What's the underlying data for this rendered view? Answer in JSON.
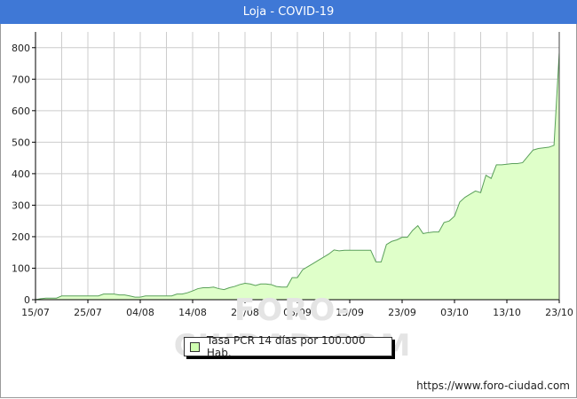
{
  "header": {
    "title": "Loja - COVID-19"
  },
  "footer": {
    "url": "https://www.foro-ciudad.com"
  },
  "watermark": {
    "text": "FORO-CIUDAD.COM"
  },
  "colors": {
    "title_bg": "#3f78d6",
    "area_fill": "#dfffc9",
    "area_line": "#5aa05a",
    "grid": "#cccccc"
  },
  "chart_data": {
    "type": "area",
    "title": "Loja - COVID-19",
    "xlabel": "",
    "ylabel": "",
    "ylim": [
      0,
      850
    ],
    "yticks": [
      0,
      100,
      200,
      300,
      400,
      500,
      600,
      700,
      800
    ],
    "xtick_labels": [
      "15/07",
      "25/07",
      "04/08",
      "14/08",
      "24/08",
      "03/09",
      "13/09",
      "23/09",
      "03/10",
      "13/10",
      "23/10"
    ],
    "grid": true,
    "legend_position": "bottom-center",
    "series": [
      {
        "name": "Tasa PCR 14 días por 100.000 Hab.",
        "x": [
          "15/07",
          "16/07",
          "17/07",
          "18/07",
          "19/07",
          "20/07",
          "21/07",
          "22/07",
          "23/07",
          "24/07",
          "25/07",
          "26/07",
          "27/07",
          "28/07",
          "29/07",
          "30/07",
          "31/07",
          "01/08",
          "02/08",
          "03/08",
          "04/08",
          "05/08",
          "06/08",
          "07/08",
          "08/08",
          "09/08",
          "10/08",
          "11/08",
          "12/08",
          "13/08",
          "14/08",
          "15/08",
          "16/08",
          "17/08",
          "18/08",
          "19/08",
          "20/08",
          "21/08",
          "22/08",
          "23/08",
          "24/08",
          "25/08",
          "26/08",
          "27/08",
          "28/08",
          "29/08",
          "30/08",
          "31/08",
          "01/09",
          "02/09",
          "03/09",
          "04/09",
          "05/09",
          "06/09",
          "07/09",
          "08/09",
          "09/09",
          "10/09",
          "11/09",
          "12/09",
          "13/09",
          "14/09",
          "15/09",
          "16/09",
          "17/09",
          "18/09",
          "19/09",
          "20/09",
          "21/09",
          "22/09",
          "23/09",
          "24/09",
          "25/09",
          "26/09",
          "27/09",
          "28/09",
          "29/09",
          "30/09",
          "01/10",
          "02/10",
          "03/10",
          "04/10",
          "05/10",
          "06/10",
          "07/10",
          "08/10",
          "09/10",
          "10/10",
          "11/10",
          "12/10",
          "13/10",
          "14/10",
          "15/10",
          "16/10",
          "17/10",
          "18/10",
          "19/10",
          "20/10",
          "21/10",
          "22/10",
          "23/10"
        ],
        "values": [
          0,
          3,
          5,
          5,
          5,
          12,
          12,
          12,
          12,
          12,
          12,
          12,
          12,
          18,
          18,
          18,
          15,
          15,
          12,
          8,
          8,
          12,
          12,
          12,
          12,
          12,
          12,
          18,
          18,
          22,
          28,
          35,
          38,
          38,
          40,
          35,
          32,
          38,
          42,
          48,
          52,
          50,
          45,
          50,
          50,
          48,
          42,
          40,
          40,
          70,
          70,
          95,
          105,
          115,
          125,
          135,
          145,
          158,
          155,
          157,
          157,
          157,
          157,
          157,
          157,
          120,
          120,
          175,
          185,
          190,
          198,
          198,
          220,
          235,
          210,
          213,
          215,
          215,
          245,
          250,
          265,
          310,
          325,
          335,
          345,
          340,
          395,
          385,
          428,
          428,
          430,
          432,
          432,
          435,
          455,
          475,
          480,
          482,
          484,
          490,
          785
        ]
      }
    ]
  },
  "legend": {
    "label": "Tasa PCR 14 días por 100.000 Hab."
  }
}
